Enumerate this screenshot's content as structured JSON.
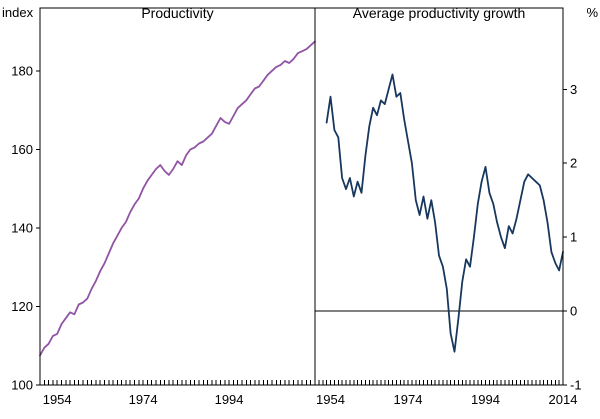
{
  "chart_data": [
    {
      "type": "line",
      "panel": "left",
      "title": "Productivity",
      "y_axis_unit": "index",
      "y_axis_side": "left",
      "ylim": [
        100,
        196
      ],
      "yticks": [
        100,
        120,
        140,
        160,
        180
      ],
      "xlim": [
        1950,
        2014
      ],
      "xtick_labels": [
        "1954",
        "1974",
        "1994"
      ],
      "grid": false,
      "legend": "none",
      "line_color": "#9153a4",
      "series": [
        {
          "name": "Productivity (index)",
          "x": [
            1950,
            1951,
            1952,
            1953,
            1954,
            1955,
            1956,
            1957,
            1958,
            1959,
            1960,
            1961,
            1962,
            1963,
            1964,
            1965,
            1966,
            1967,
            1968,
            1969,
            1970,
            1971,
            1972,
            1973,
            1974,
            1975,
            1976,
            1977,
            1978,
            1979,
            1980,
            1981,
            1982,
            1983,
            1984,
            1985,
            1986,
            1987,
            1988,
            1989,
            1990,
            1991,
            1992,
            1993,
            1994,
            1995,
            1996,
            1997,
            1998,
            1999,
            2000,
            2001,
            2002,
            2003,
            2004,
            2005,
            2006,
            2007,
            2008,
            2009,
            2010,
            2011,
            2012,
            2013,
            2014
          ],
          "y": [
            107.5,
            109.5,
            110.5,
            112.5,
            113,
            115.5,
            117,
            118.5,
            118,
            120.5,
            121,
            122,
            124.5,
            126.5,
            129,
            131,
            133.5,
            136,
            138,
            140,
            141.5,
            144,
            146,
            147.5,
            150,
            152,
            153.5,
            155,
            156,
            154.5,
            153.5,
            155,
            157,
            156,
            158.5,
            160,
            160.5,
            161.5,
            162,
            163,
            164,
            166,
            168,
            167,
            166.5,
            168.5,
            170.5,
            171.5,
            172.5,
            174,
            175.5,
            176,
            177.5,
            179,
            180,
            181,
            181.5,
            182.5,
            182,
            183,
            184.5,
            185,
            185.5,
            186.5,
            187.5
          ]
        }
      ]
    },
    {
      "type": "line",
      "panel": "right",
      "title": "Average productivity growth",
      "y_axis_unit": "%",
      "y_axis_side": "right",
      "ylim": [
        -1,
        4.1
      ],
      "yticks": [
        -1,
        0,
        1,
        2,
        3
      ],
      "xlim": [
        1950,
        2014
      ],
      "xtick_labels": [
        "1954",
        "1974",
        "1994",
        "2014"
      ],
      "grid": false,
      "legend": "none",
      "zero_line": true,
      "line_color": "#17375e",
      "series": [
        {
          "name": "Average productivity growth (%)",
          "x": [
            1953,
            1954,
            1955,
            1956,
            1957,
            1958,
            1959,
            1960,
            1961,
            1962,
            1963,
            1964,
            1965,
            1966,
            1967,
            1968,
            1969,
            1970,
            1971,
            1972,
            1973,
            1974,
            1975,
            1976,
            1977,
            1978,
            1979,
            1980,
            1981,
            1982,
            1983,
            1984,
            1985,
            1986,
            1987,
            1988,
            1989,
            1990,
            1991,
            1992,
            1993,
            1994,
            1995,
            1996,
            1997,
            1998,
            1999,
            2000,
            2001,
            2002,
            2003,
            2004,
            2005,
            2006,
            2007,
            2008,
            2009,
            2010,
            2011,
            2012,
            2013,
            2014
          ],
          "y": [
            2.55,
            2.9,
            2.45,
            2.35,
            1.8,
            1.65,
            1.8,
            1.55,
            1.75,
            1.6,
            2.1,
            2.5,
            2.75,
            2.65,
            2.85,
            2.8,
            3.0,
            3.2,
            2.9,
            2.95,
            2.6,
            2.3,
            2.0,
            1.5,
            1.3,
            1.55,
            1.25,
            1.5,
            1.2,
            0.75,
            0.6,
            0.3,
            -0.3,
            -0.55,
            -0.1,
            0.4,
            0.7,
            0.6,
            1.0,
            1.45,
            1.75,
            1.95,
            1.6,
            1.45,
            1.2,
            1.0,
            0.85,
            1.15,
            1.05,
            1.25,
            1.5,
            1.75,
            1.85,
            1.8,
            1.75,
            1.7,
            1.5,
            1.2,
            0.8,
            0.65,
            0.55,
            0.8
          ]
        }
      ]
    }
  ]
}
